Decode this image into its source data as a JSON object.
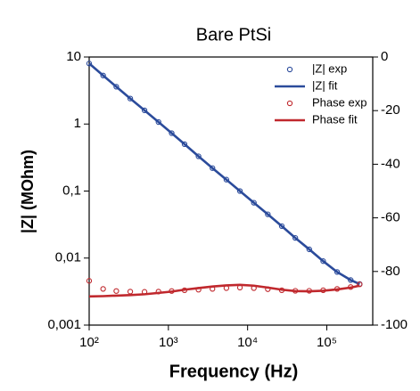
{
  "chart_data": {
    "type": "line",
    "title": "Bare PtSi",
    "xlabel": "Frequency (Hz)",
    "ylabel": "|Z| (MOhm)",
    "x": [
      100,
      150,
      220,
      330,
      500,
      750,
      1100,
      1600,
      2400,
      3600,
      5400,
      8000,
      12000,
      18000,
      27000,
      40000,
      60000,
      90000,
      135000,
      200000,
      260000
    ],
    "series": [
      {
        "name": "|Z| exp",
        "color": "#2b4b9b",
        "mode": "markers",
        "axis": "y",
        "values": [
          8,
          5.3,
          3.6,
          2.4,
          1.6,
          1.07,
          0.73,
          0.5,
          0.33,
          0.22,
          0.148,
          0.1,
          0.067,
          0.045,
          0.03,
          0.02,
          0.0135,
          0.009,
          0.0062,
          0.0047,
          0.0041
        ]
      },
      {
        "name": "|Z| fit",
        "color": "#2b4b9b",
        "mode": "lines",
        "axis": "y",
        "values": [
          8,
          5.3,
          3.6,
          2.4,
          1.6,
          1.07,
          0.73,
          0.5,
          0.33,
          0.22,
          0.148,
          0.1,
          0.067,
          0.045,
          0.03,
          0.02,
          0.0135,
          0.009,
          0.0062,
          0.0047,
          0.0041
        ]
      },
      {
        "name": "Phase exp",
        "color": "#c0282d",
        "mode": "markers",
        "axis": "y2",
        "values": [
          -83.5,
          -86.5,
          -87.3,
          -87.5,
          -87.6,
          -87.5,
          -87.3,
          -87.0,
          -86.8,
          -86.5,
          -86.2,
          -86.0,
          -86.2,
          -86.6,
          -87.0,
          -87.2,
          -87.2,
          -87.0,
          -86.5,
          -85.8,
          -84.8
        ]
      },
      {
        "name": "Phase fit",
        "color": "#c0282d",
        "mode": "lines",
        "axis": "y2",
        "values": [
          -89.3,
          -89.2,
          -89.0,
          -88.8,
          -88.5,
          -88.0,
          -87.5,
          -86.8,
          -86.2,
          -85.6,
          -85.2,
          -85.0,
          -85.3,
          -86.0,
          -86.8,
          -87.3,
          -87.4,
          -87.2,
          -86.7,
          -86.0,
          -85.3
        ]
      }
    ],
    "xscale": "log",
    "yscale": "log",
    "xlim": [
      100,
      380000
    ],
    "xticks": [
      {
        "value": 100,
        "label": "10²"
      },
      {
        "value": 1000,
        "label": "10³"
      },
      {
        "value": 10000,
        "label": "10⁴"
      },
      {
        "value": 100000,
        "label": "10⁵"
      }
    ],
    "ylim": [
      0.001,
      10
    ],
    "yticks": [
      {
        "value": 0.001,
        "label": "0,001"
      },
      {
        "value": 0.01,
        "label": "0,01"
      },
      {
        "value": 0.1,
        "label": "0,1"
      },
      1,
      10
    ],
    "y2lim": [
      -100,
      0
    ],
    "y2ticks": [
      -100,
      -80,
      -60,
      -40,
      -20,
      0
    ],
    "legend": "upper right"
  }
}
